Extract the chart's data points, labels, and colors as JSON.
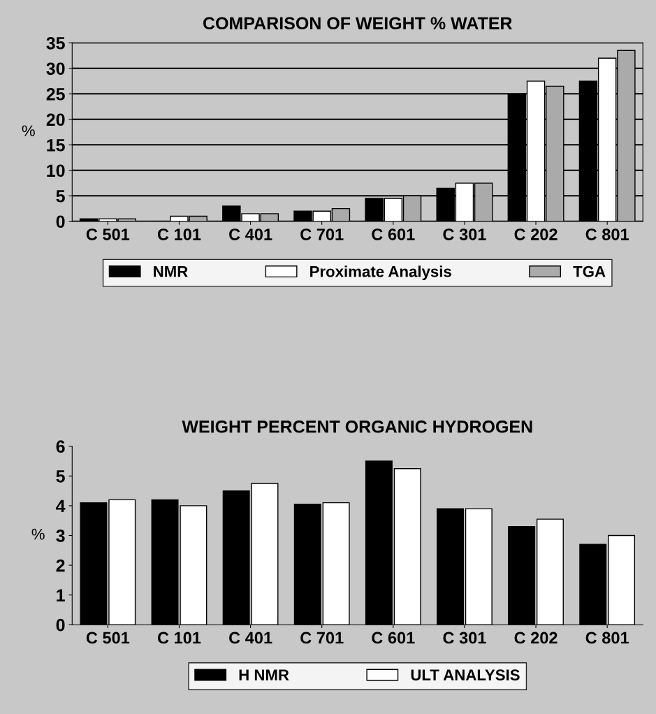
{
  "chart_data": [
    {
      "type": "bar",
      "title": "COMPARISON OF WEIGHT % WATER",
      "ylabel": "%",
      "categories": [
        "C 501",
        "C 101",
        "C 401",
        "C 701",
        "C 601",
        "C 301",
        "C 202",
        "C 801"
      ],
      "series": [
        {
          "name": "NMR",
          "color": "#000000",
          "values": [
            0.5,
            0,
            3,
            2,
            4.5,
            6.5,
            25,
            27.5
          ]
        },
        {
          "name": "Proximate Analysis",
          "color": "#ffffff",
          "values": [
            0.5,
            1,
            1.5,
            2,
            4.5,
            7.5,
            27.5,
            32
          ]
        },
        {
          "name": "TGA",
          "color": "#aaaaaa",
          "values": [
            0.5,
            1,
            1.5,
            2.5,
            5,
            7.5,
            26.5,
            33.5
          ]
        }
      ],
      "ylim": [
        0,
        35
      ],
      "yticks": [
        0,
        5,
        10,
        15,
        20,
        25,
        30,
        35
      ],
      "grid": "y",
      "legend": "bottom"
    },
    {
      "type": "bar",
      "title": "WEIGHT PERCENT ORGANIC HYDROGEN",
      "ylabel": "%",
      "categories": [
        "C 501",
        "C 101",
        "C 401",
        "C 701",
        "C 601",
        "C 301",
        "C 202",
        "C 801"
      ],
      "series": [
        {
          "name": "H NMR",
          "color": "#000000",
          "values": [
            4.1,
            4.2,
            4.5,
            4.05,
            5.5,
            3.9,
            3.3,
            2.7
          ]
        },
        {
          "name": "ULT ANALYSIS",
          "color": "#ffffff",
          "values": [
            4.2,
            4.0,
            4.75,
            4.1,
            5.25,
            3.9,
            3.55,
            3.0
          ]
        }
      ],
      "ylim": [
        0,
        6
      ],
      "yticks": [
        0,
        1,
        2,
        3,
        4,
        5,
        6
      ],
      "grid": false,
      "legend": "bottom"
    }
  ]
}
